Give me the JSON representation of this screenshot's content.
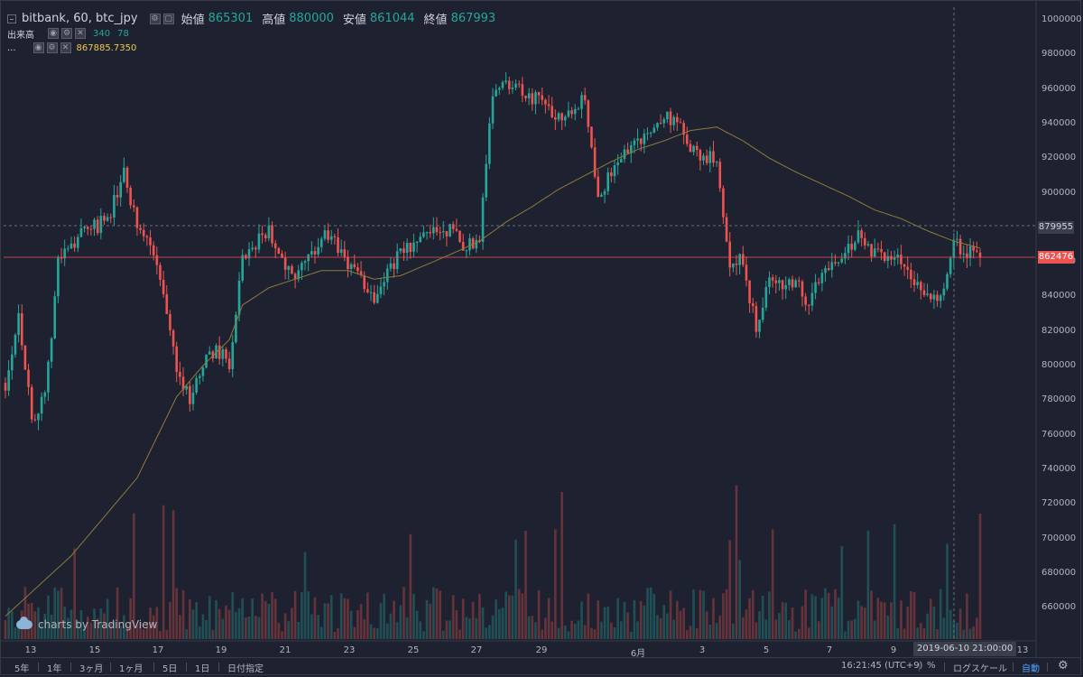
{
  "legend": {
    "symbol": "bitbank, 60, btc_jpy",
    "open_label": "始値",
    "open_value": "865301",
    "high_label": "高値",
    "high_value": "880000",
    "low_label": "安値",
    "low_value": "861044",
    "close_label": "終値",
    "close_value": "867993",
    "volume_label": "出来高",
    "volume_value_1": "340",
    "volume_value_2": "78",
    "ma_label": "...",
    "ma_value": "867885.7350"
  },
  "price_axis": {
    "ticks": [
      "1000000",
      "980000",
      "960000",
      "940000",
      "920000",
      "900000",
      "880000",
      "860000",
      "840000",
      "820000",
      "800000",
      "780000",
      "760000",
      "740000",
      "720000",
      "700000",
      "680000",
      "660000"
    ],
    "high_flag": "879955",
    "last_flag": "862476"
  },
  "time_axis": {
    "ticks": [
      "13",
      "15",
      "17",
      "19",
      "21",
      "23",
      "25",
      "27",
      "29",
      "6月",
      "3",
      "5",
      "7",
      "9",
      "13"
    ],
    "crosshair_label": "2019-06-10 21:00:00"
  },
  "toolbar": {
    "ranges": [
      "5年",
      "1年",
      "3ヶ月",
      "1ヶ月",
      "5日",
      "1日",
      "日付指定"
    ],
    "clock": "16:21:45 (UTC+9)",
    "percent": "%",
    "log": "ログスケール",
    "auto": "自動"
  },
  "watermark": "charts by TradingView",
  "colors": {
    "up": "#26a69a",
    "down": "#ef5350",
    "ma": "#8d7a3a",
    "background": "#1e2230"
  },
  "chart_data": {
    "type": "candlestick",
    "symbol": "btc_jpy",
    "ylim": [
      640000,
      1005000
    ],
    "x_ticks": [
      "13",
      "15",
      "17",
      "19",
      "21",
      "23",
      "25",
      "27",
      "29",
      "6月",
      "3",
      "5",
      "7",
      "9",
      "13"
    ],
    "close_path": [
      [
        0,
        790000
      ],
      [
        4,
        830000
      ],
      [
        8,
        770000
      ],
      [
        12,
        780000
      ],
      [
        16,
        860000
      ],
      [
        20,
        870000
      ],
      [
        24,
        880000
      ],
      [
        28,
        880000
      ],
      [
        32,
        890000
      ],
      [
        36,
        910000
      ],
      [
        40,
        880000
      ],
      [
        44,
        870000
      ],
      [
        48,
        840000
      ],
      [
        52,
        800000
      ],
      [
        56,
        780000
      ],
      [
        60,
        800000
      ],
      [
        64,
        810000
      ],
      [
        68,
        800000
      ],
      [
        72,
        860000
      ],
      [
        76,
        870000
      ],
      [
        80,
        880000
      ],
      [
        84,
        860000
      ],
      [
        88,
        850000
      ],
      [
        92,
        860000
      ],
      [
        96,
        875000
      ],
      [
        100,
        870000
      ],
      [
        104,
        860000
      ],
      [
        108,
        850000
      ],
      [
        112,
        840000
      ],
      [
        116,
        855000
      ],
      [
        120,
        865000
      ],
      [
        124,
        870000
      ],
      [
        128,
        875000
      ],
      [
        132,
        880000
      ],
      [
        136,
        878000
      ],
      [
        140,
        868000
      ],
      [
        144,
        875000
      ],
      [
        148,
        960000
      ],
      [
        152,
        965000
      ],
      [
        156,
        960000
      ],
      [
        160,
        955000
      ],
      [
        164,
        950000
      ],
      [
        168,
        945000
      ],
      [
        172,
        950000
      ],
      [
        176,
        955000
      ],
      [
        180,
        900000
      ],
      [
        184,
        910000
      ],
      [
        188,
        925000
      ],
      [
        192,
        930000
      ],
      [
        196,
        935000
      ],
      [
        200,
        945000
      ],
      [
        204,
        940000
      ],
      [
        208,
        925000
      ],
      [
        212,
        920000
      ],
      [
        216,
        920000
      ],
      [
        220,
        860000
      ],
      [
        224,
        860000
      ],
      [
        228,
        820000
      ],
      [
        232,
        850000
      ],
      [
        236,
        845000
      ],
      [
        240,
        850000
      ],
      [
        244,
        835000
      ],
      [
        248,
        855000
      ],
      [
        252,
        860000
      ],
      [
        256,
        870000
      ],
      [
        260,
        875000
      ],
      [
        264,
        865000
      ],
      [
        268,
        860000
      ],
      [
        272,
        860000
      ],
      [
        276,
        850000
      ],
      [
        280,
        840000
      ],
      [
        284,
        840000
      ],
      [
        288,
        870000
      ],
      [
        292,
        866000
      ],
      [
        296,
        862476
      ]
    ],
    "ma_path": [
      [
        0,
        655000
      ],
      [
        20,
        690000
      ],
      [
        40,
        735000
      ],
      [
        52,
        782000
      ],
      [
        60,
        800000
      ],
      [
        68,
        815000
      ],
      [
        72,
        835000
      ],
      [
        80,
        845000
      ],
      [
        96,
        855000
      ],
      [
        104,
        855000
      ],
      [
        112,
        850000
      ],
      [
        120,
        852000
      ],
      [
        136,
        865000
      ],
      [
        144,
        872000
      ],
      [
        152,
        883000
      ],
      [
        160,
        892000
      ],
      [
        168,
        902000
      ],
      [
        176,
        910000
      ],
      [
        184,
        918000
      ],
      [
        192,
        925000
      ],
      [
        200,
        930000
      ],
      [
        208,
        936000
      ],
      [
        216,
        938000
      ],
      [
        224,
        930000
      ],
      [
        232,
        920000
      ],
      [
        240,
        912000
      ],
      [
        248,
        905000
      ],
      [
        256,
        898000
      ],
      [
        264,
        890000
      ],
      [
        272,
        885000
      ],
      [
        280,
        878000
      ],
      [
        288,
        872000
      ],
      [
        296,
        868000
      ]
    ],
    "last_open": 865301,
    "last_high": 880000,
    "last_low": 861044,
    "last_close": 867993,
    "current_price": 862476,
    "recent_high_line": 879955,
    "volume_last": [
      340,
      78
    ],
    "ma_last": 867885.735,
    "grid": false
  }
}
